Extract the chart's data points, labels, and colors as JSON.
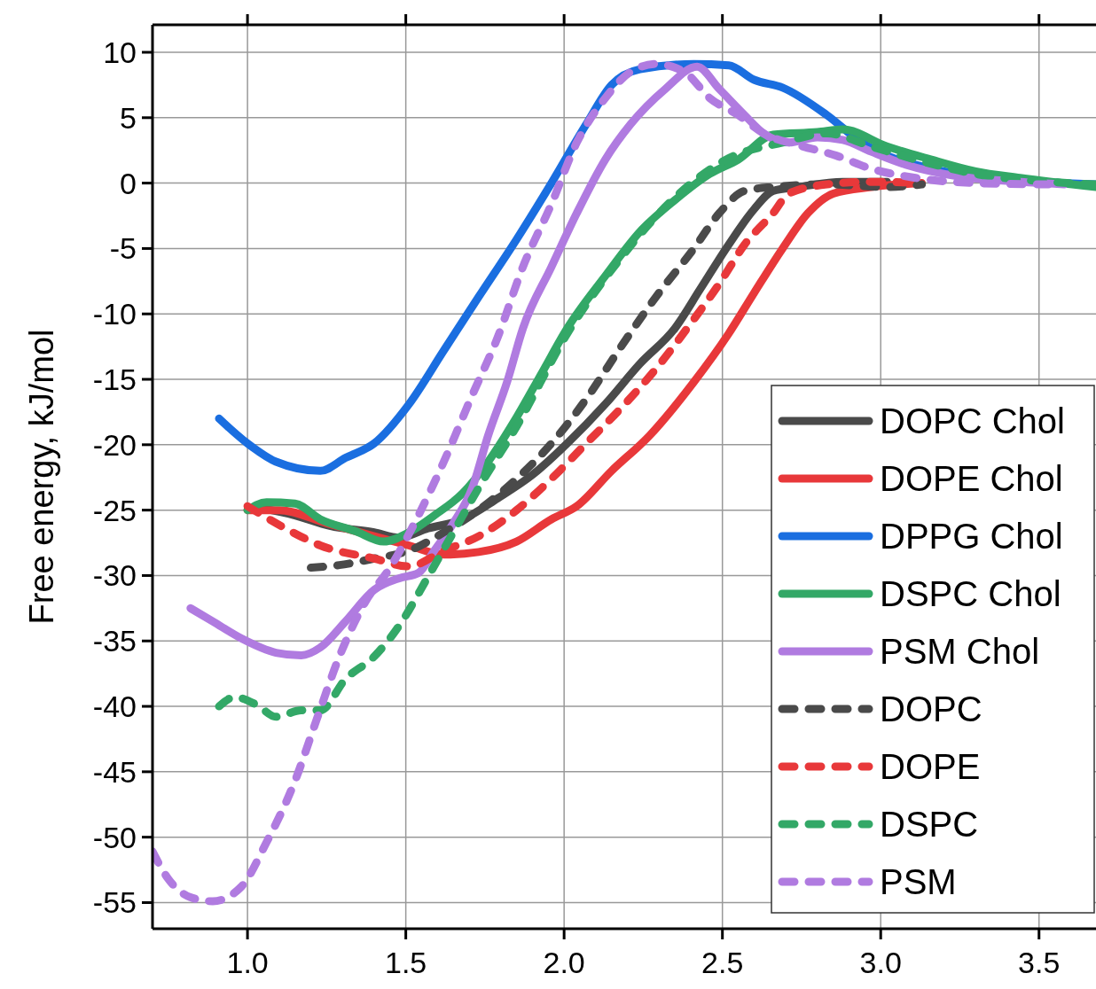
{
  "chart_data": {
    "type": "line",
    "ylabel": "Free energy, kJ/mol",
    "xlim": [
      0.7,
      3.68
    ],
    "ylim": [
      -57,
      12.1
    ],
    "xticks": [
      {
        "value": 1,
        "label": "1.0"
      },
      {
        "value": 1.5,
        "label": "1.5"
      },
      {
        "value": 2,
        "label": "2.0"
      },
      {
        "value": 2.5,
        "label": "2.5"
      },
      {
        "value": 3,
        "label": "3.0"
      },
      {
        "value": 3.5,
        "label": "3.5"
      }
    ],
    "yticks": [
      10,
      5,
      0,
      -5,
      -10,
      -15,
      -20,
      -25,
      -30,
      -35,
      -40,
      -45,
      -50,
      -55
    ],
    "grid": true,
    "legend": "bottom right",
    "series": [
      {
        "name": "DOPC Chol",
        "color": "#4a4a4a",
        "line_style": "solid",
        "x": [
          1.03,
          1.15,
          1.26,
          1.4,
          1.48,
          1.57,
          1.68,
          1.79,
          1.9,
          2.01,
          2.13,
          2.24,
          2.35,
          2.43,
          2.52,
          2.6,
          2.66,
          2.74,
          2.88,
          3.02
        ],
        "values": [
          -24.8,
          -25.4,
          -26.2,
          -26.7,
          -27.1,
          -26.4,
          -25.7,
          -24.1,
          -22.3,
          -19.9,
          -16.9,
          -13.8,
          -11.1,
          -8.1,
          -4.7,
          -2,
          -0.6,
          -0.3,
          0.1,
          0.1
        ]
      },
      {
        "name": "DOPE Chol",
        "color": "#e8383a",
        "line_style": "solid",
        "x": [
          1,
          1.1,
          1.25,
          1.4,
          1.51,
          1.62,
          1.73,
          1.85,
          1.96,
          2.04,
          2.15,
          2.27,
          2.41,
          2.52,
          2.6,
          2.69,
          2.77,
          2.85,
          2.97,
          3.13
        ],
        "values": [
          -25,
          -25,
          -26,
          -27,
          -27.7,
          -28.4,
          -28.2,
          -27.4,
          -25.7,
          -24.7,
          -22,
          -19.3,
          -15.2,
          -11.5,
          -8.4,
          -5,
          -2.3,
          -0.8,
          -0.3,
          0
        ]
      },
      {
        "name": "DPPG Chol",
        "color": "#1a6ee0",
        "line_style": "solid",
        "x": [
          0.91,
          1,
          1.09,
          1.23,
          1.31,
          1.4,
          1.51,
          1.62,
          1.73,
          1.85,
          1.96,
          2.07,
          2.15,
          2.24,
          2.41,
          2.52,
          2.6,
          2.69,
          2.83,
          2.94,
          3.02,
          3.16,
          3.3,
          3.44,
          3.68
        ],
        "values": [
          -18,
          -19.9,
          -21.3,
          -22,
          -21,
          -19.9,
          -16.9,
          -12.8,
          -8.7,
          -4.3,
          0,
          4.5,
          7.5,
          8.7,
          9.1,
          9,
          7.9,
          7.3,
          5.2,
          3.1,
          2.1,
          1.1,
          0.5,
          0.2,
          -0.1
        ]
      },
      {
        "name": "DSPC Chol",
        "color": "#33a867",
        "line_style": "solid",
        "x": [
          1,
          1.06,
          1.15,
          1.23,
          1.34,
          1.43,
          1.51,
          1.59,
          1.68,
          1.76,
          1.85,
          1.93,
          2.01,
          2.13,
          2.24,
          2.35,
          2.46,
          2.55,
          2.66,
          2.8,
          2.88,
          3.02,
          3.16,
          3.3,
          3.44,
          3.68
        ],
        "values": [
          -25,
          -24.4,
          -24.5,
          -25.7,
          -26.6,
          -27.4,
          -26.7,
          -25.4,
          -23.7,
          -21.3,
          -17.9,
          -14.5,
          -11.1,
          -7.1,
          -3.7,
          -1.3,
          0.7,
          1.8,
          3.7,
          3.9,
          4.1,
          2.8,
          1.8,
          0.9,
          0.4,
          -0.3
        ]
      },
      {
        "name": "PSM Chol",
        "color": "#b07be0",
        "line_style": "solid",
        "x": [
          0.82,
          0.89,
          0.98,
          1.09,
          1.17,
          1.23,
          1.31,
          1.4,
          1.48,
          1.54,
          1.59,
          1.65,
          1.71,
          1.76,
          1.82,
          1.87,
          1.96,
          2.04,
          2.13,
          2.21,
          2.32,
          2.42,
          2.49,
          2.57,
          2.63,
          2.71,
          2.8,
          2.88,
          2.97,
          3.08,
          3.25,
          3.44,
          3.58
        ],
        "values": [
          -32.5,
          -33.5,
          -34.8,
          -35.9,
          -36.1,
          -35.5,
          -33.5,
          -31.1,
          -30.2,
          -29.8,
          -28.1,
          -26,
          -23.3,
          -19.3,
          -15.2,
          -11.1,
          -6.4,
          -2.3,
          1.8,
          4.5,
          7.2,
          8.9,
          7.2,
          5.2,
          3.8,
          3.1,
          3.5,
          3.3,
          2.4,
          1.4,
          0.5,
          0.1,
          -0.1
        ]
      },
      {
        "name": "DOPC",
        "color": "#4a4a4a",
        "line_style": "dashed",
        "x": [
          1.2,
          1.29,
          1.4,
          1.51,
          1.62,
          1.73,
          1.85,
          1.96,
          2.07,
          2.18,
          2.29,
          2.41,
          2.49,
          2.57,
          2.66,
          2.83,
          3.02,
          3.13
        ],
        "values": [
          -29.4,
          -29.2,
          -28.7,
          -28.1,
          -26.7,
          -25,
          -22.6,
          -19.9,
          -16.5,
          -12.5,
          -8.7,
          -5,
          -2.3,
          -0.6,
          -0.3,
          -0.1,
          -0.3,
          -0.1
        ]
      },
      {
        "name": "DOPE",
        "color": "#e8383a",
        "line_style": "dashed",
        "x": [
          1,
          1.12,
          1.23,
          1.4,
          1.51,
          1.62,
          1.73,
          1.85,
          1.96,
          2.07,
          2.18,
          2.29,
          2.41,
          2.49,
          2.57,
          2.66,
          2.71,
          2.83,
          2.97,
          3.13
        ],
        "values": [
          -24.7,
          -26.4,
          -27.7,
          -28.7,
          -29.3,
          -28.1,
          -27,
          -25,
          -22.6,
          -19.9,
          -17.2,
          -14.2,
          -10.4,
          -7.7,
          -4.7,
          -2.3,
          -0.8,
          -0.1,
          0.1,
          0
        ]
      },
      {
        "name": "DSPC",
        "color": "#33a867",
        "line_style": "dashed",
        "x": [
          0.91,
          0.96,
          1.03,
          1.09,
          1.17,
          1.23,
          1.31,
          1.4,
          1.48,
          1.57,
          1.65,
          1.73,
          1.85,
          2.01,
          2.18,
          2.35,
          2.52,
          2.69,
          2.83,
          2.97,
          3.11,
          3.3,
          3.53,
          3.68
        ],
        "values": [
          -40,
          -39.3,
          -39.9,
          -40.8,
          -40.3,
          -40.3,
          -37.9,
          -36.2,
          -33.8,
          -30.1,
          -26.7,
          -23.3,
          -18.6,
          -11.5,
          -5.7,
          -1.1,
          1.9,
          3.1,
          3.8,
          2.8,
          1.8,
          0.7,
          0.1,
          -0.1
        ]
      },
      {
        "name": "PSM",
        "color": "#b07be0",
        "line_style": "dashed",
        "x": [
          0.7,
          0.75,
          0.82,
          0.89,
          0.98,
          1.06,
          1.15,
          1.22,
          1.29,
          1.37,
          1.45,
          1.54,
          1.62,
          1.71,
          1.79,
          1.87,
          1.96,
          2.04,
          2.13,
          2.21,
          2.29,
          2.38,
          2.46,
          2.55,
          2.63,
          2.74,
          2.86,
          2.97,
          3.11,
          3.3,
          3.53
        ],
        "values": [
          -51.1,
          -53.2,
          -54.6,
          -54.9,
          -53.8,
          -50.4,
          -45.7,
          -40.9,
          -36.2,
          -32.1,
          -29.4,
          -25.4,
          -21.3,
          -16.2,
          -11.8,
          -6.4,
          -1.6,
          3.1,
          6.5,
          8.5,
          9.1,
          8.5,
          6.5,
          5.2,
          3.8,
          2.9,
          2.1,
          1.1,
          0.4,
          0,
          -0.1
        ]
      }
    ]
  }
}
